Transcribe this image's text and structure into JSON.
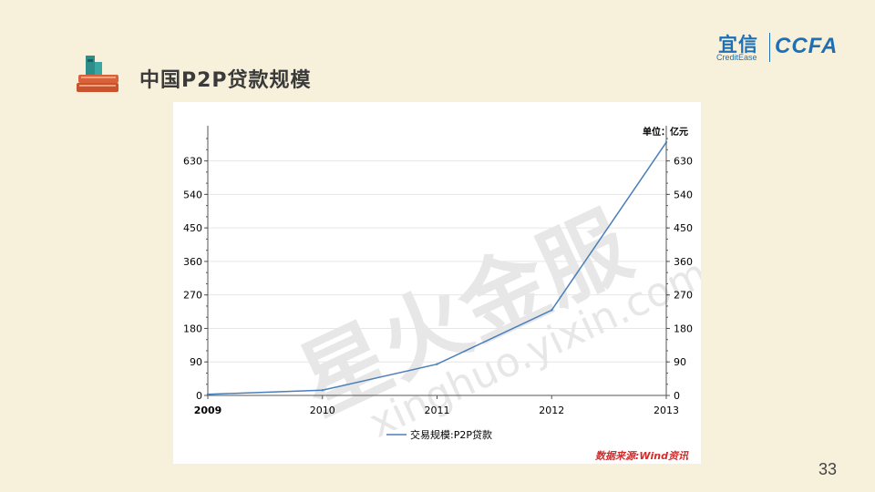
{
  "slide": {
    "title": "中国P2P贷款规模",
    "page_number": "33",
    "logo": {
      "cn": "宜信",
      "en": "CreditEase",
      "mark": "CCFA"
    }
  },
  "colors": {
    "background": "#f7f1dc",
    "line": "#4a7ebb",
    "logo": "#1f6fb5",
    "source": "#d42a2a"
  },
  "chart_data": {
    "type": "line",
    "title": "",
    "unit_label": "单位：亿元",
    "x": [
      "2009",
      "2010",
      "2011",
      "2012",
      "2013"
    ],
    "series": [
      {
        "name": "交易规模:P2P贷款",
        "values": [
          3,
          14,
          84,
          229,
          680
        ]
      }
    ],
    "ylim": [
      0,
      700
    ],
    "yticks": [
      0,
      90,
      180,
      270,
      360,
      450,
      540,
      630
    ],
    "grid": true,
    "dual_axis": true,
    "legend": "bottom-center",
    "source": "数据来源:Wind资讯",
    "watermark": {
      "cn": "星火金服",
      "en": "xinghuo.yixin.com"
    }
  }
}
